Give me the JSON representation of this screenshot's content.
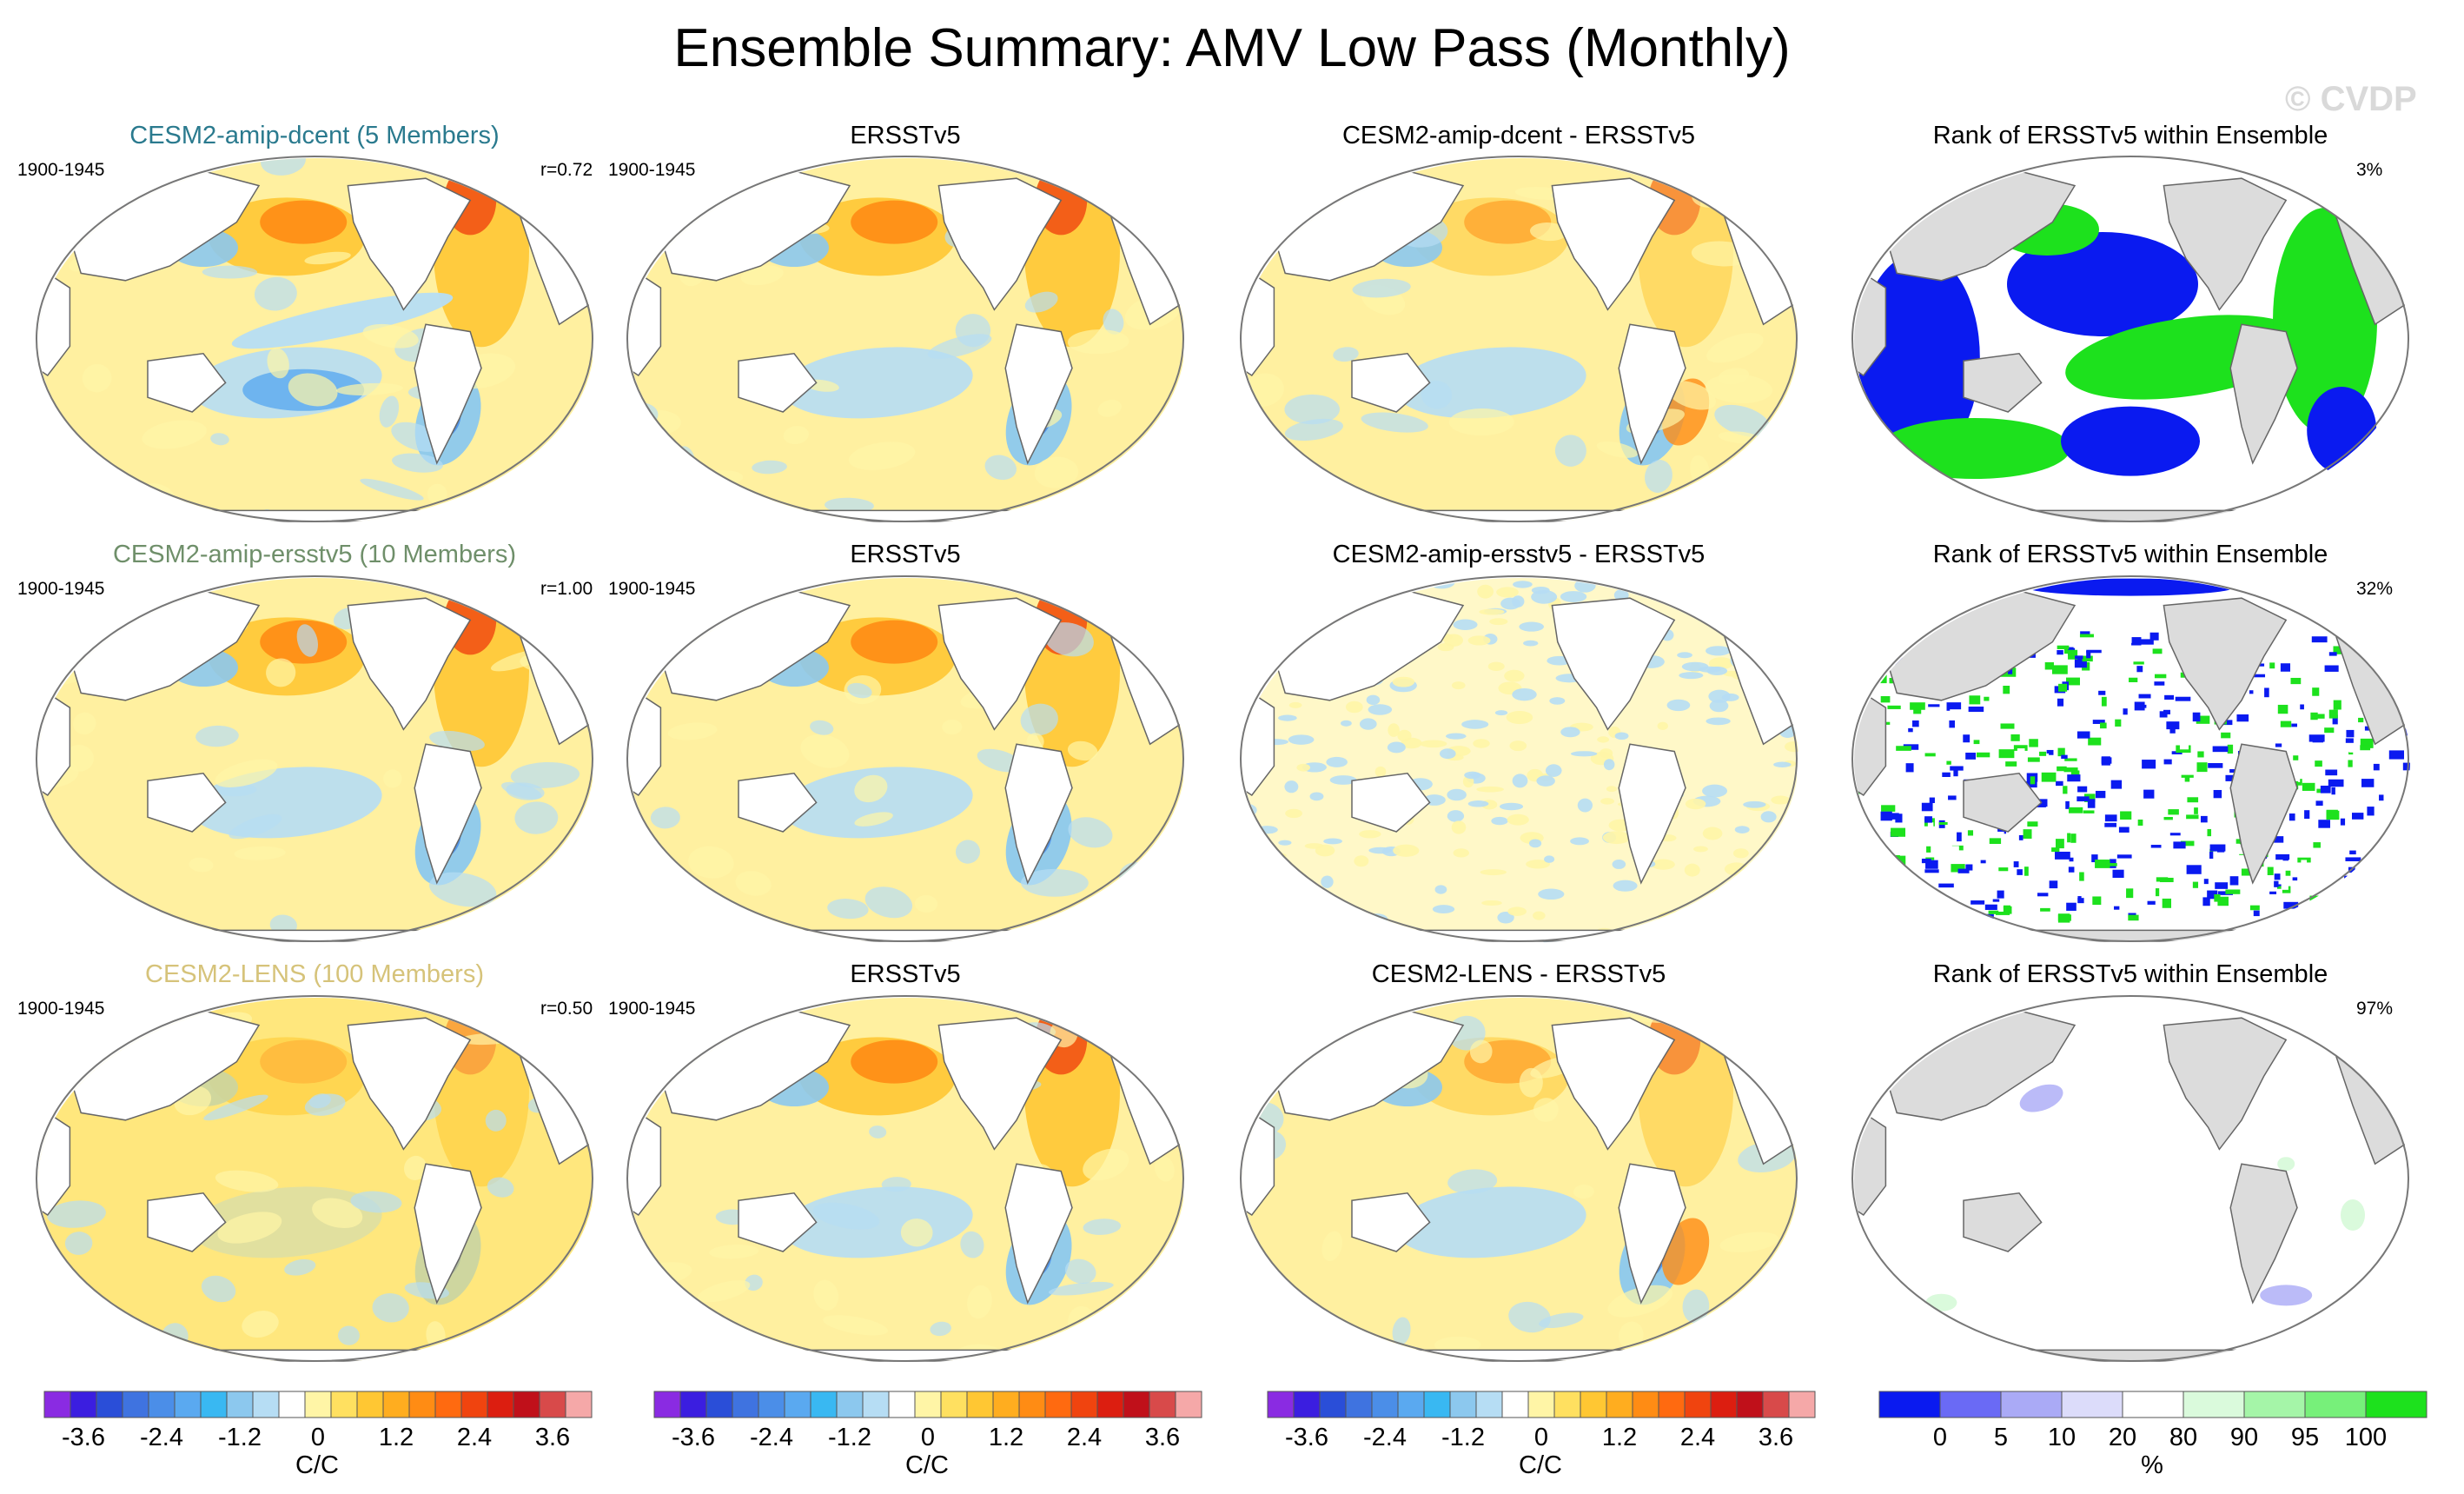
{
  "title": "Ensemble Summary: AMV Low Pass (Monthly)",
  "watermark": "© CVDP",
  "colors": {
    "model_row1": "#2a7a8e",
    "model_row2": "#6f8f6a",
    "model_row3": "#d6c37a",
    "land_rank": "#dcdcdc"
  },
  "chart_data": [
    {
      "type": "heatmap",
      "id": "r1c1",
      "title": "CESM2-amip-dcent (5 Members)",
      "period": "1900-1945",
      "stat": "r=0.72",
      "title_color": "#2a7a8e"
    },
    {
      "type": "heatmap",
      "id": "r1c2",
      "title": "ERSSTv5",
      "period": "1900-1945",
      "stat": ""
    },
    {
      "type": "heatmap",
      "id": "r1c3",
      "title": "CESM2-amip-dcent - ERSSTv5",
      "period": "",
      "stat": ""
    },
    {
      "type": "heatmap",
      "id": "r1c4",
      "title": "Rank of ERSSTv5 within Ensemble",
      "period": "",
      "stat": "3%"
    },
    {
      "type": "heatmap",
      "id": "r2c1",
      "title": "CESM2-amip-ersstv5 (10 Members)",
      "period": "1900-1945",
      "stat": "r=1.00",
      "title_color": "#6f8f6a"
    },
    {
      "type": "heatmap",
      "id": "r2c2",
      "title": "ERSSTv5",
      "period": "1900-1945",
      "stat": ""
    },
    {
      "type": "heatmap",
      "id": "r2c3",
      "title": "CESM2-amip-ersstv5 - ERSSTv5",
      "period": "",
      "stat": ""
    },
    {
      "type": "heatmap",
      "id": "r2c4",
      "title": "Rank of ERSSTv5 within Ensemble",
      "period": "",
      "stat": "32%"
    },
    {
      "type": "heatmap",
      "id": "r3c1",
      "title": "CESM2-LENS (100 Members)",
      "period": "1900-1945",
      "stat": "r=0.50",
      "title_color": "#d6c37a"
    },
    {
      "type": "heatmap",
      "id": "r3c2",
      "title": "ERSSTv5",
      "period": "1900-1945",
      "stat": ""
    },
    {
      "type": "heatmap",
      "id": "r3c3",
      "title": "CESM2-LENS - ERSSTv5",
      "period": "",
      "stat": ""
    },
    {
      "type": "heatmap",
      "id": "r3c4",
      "title": "Rank of ERSSTv5 within Ensemble",
      "period": "",
      "stat": "97%"
    }
  ],
  "colorbars": {
    "sst": {
      "colors": [
        "#8a2be2",
        "#3b1ee0",
        "#2a4ed8",
        "#3f73e0",
        "#4b8ee8",
        "#5aa9f0",
        "#39b8f2",
        "#8cc8ee",
        "#b6ddf4",
        "#ffffff",
        "#fff5a6",
        "#ffe060",
        "#ffc733",
        "#ffad1f",
        "#ff8c14",
        "#ff6a10",
        "#f0440f",
        "#dc1e10",
        "#c0101a",
        "#d84a4a",
        "#f5a8a8"
      ],
      "ticks": [
        "-3.6",
        "-2.4",
        "-1.2",
        "0",
        "1.2",
        "2.4",
        "3.6"
      ],
      "tick_values": [
        -3.6,
        -2.4,
        -1.2,
        0,
        1.2,
        2.4,
        3.6
      ],
      "range": [
        -4.2,
        4.2
      ],
      "label": "C/C"
    },
    "rank": {
      "colors": [
        "#0a1af0",
        "#6a6af5",
        "#aaaaf6",
        "#dcdcfa",
        "#ffffff",
        "#dafadc",
        "#a5f5a8",
        "#77f07a",
        "#1de11d"
      ],
      "ticks": [
        "0",
        "5",
        "10",
        "20",
        "80",
        "90",
        "95",
        "100"
      ],
      "label": "%"
    }
  }
}
